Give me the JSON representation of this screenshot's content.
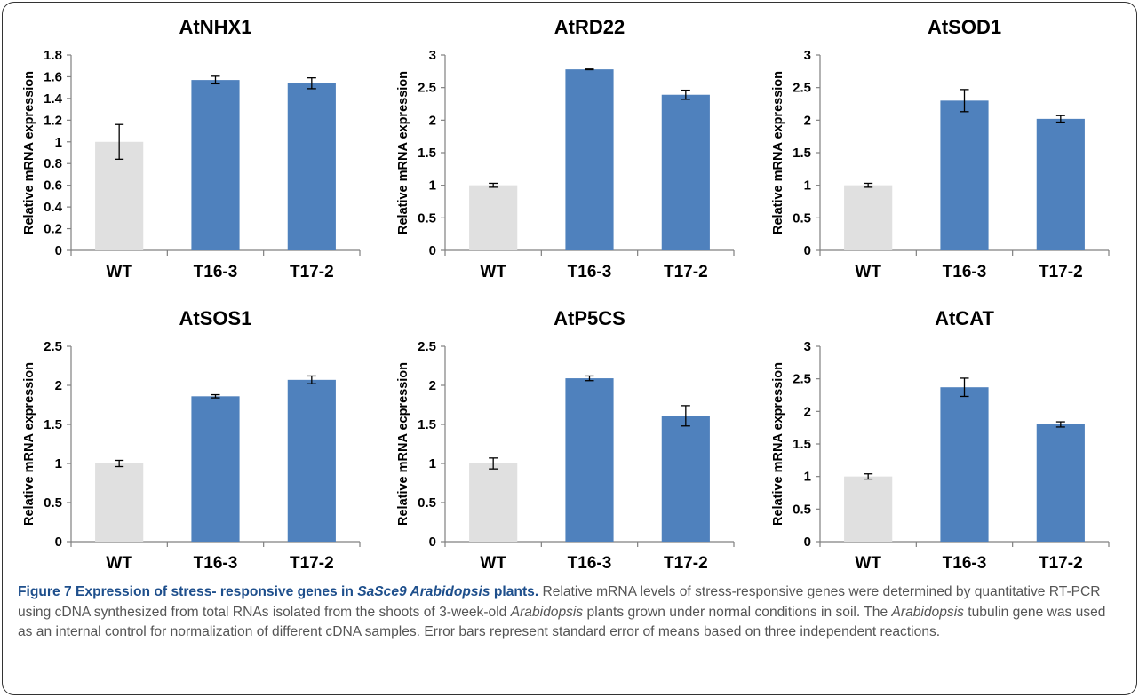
{
  "figure": {
    "caption_label": "Figure 7",
    "caption_title_1": "Expression of stress- responsive genes in ",
    "caption_title_2": "SaSce9 Arabidopsis",
    "caption_title_3": " plants.",
    "caption_text_1": " Relative mRNA levels of stress-responsive genes were determined by quantitative RT-PCR using cDNA synthesized from total RNAs isolated from the shoots of 3-week-old ",
    "caption_text_2": "Arabidopsis",
    "caption_text_3": " plants grown under normal conditions in soil. The ",
    "caption_text_4": "Arabidopsis",
    "caption_text_5": " tubulin gene was used as an internal control for normalization of different cDNA samples. Error bars represent standard error of means based on three independent reactions."
  },
  "colors": {
    "wt_bar": "#e0e0e0",
    "transgenic_bar": "#4f81bd"
  },
  "chart_data": [
    {
      "type": "bar",
      "title": "AtNHX1",
      "ylabel": "Relative mRNA expression",
      "categories": [
        "WT",
        "T16-3",
        "T17-2"
      ],
      "values": [
        1.0,
        1.57,
        1.54
      ],
      "errors": [
        0.16,
        0.035,
        0.05
      ],
      "ylim": [
        0,
        1.8
      ],
      "yticks": [
        "0",
        "0.2",
        "0.4",
        "0.6",
        "0.8",
        "1",
        "1.2",
        "1.4",
        "1.6",
        "1.8"
      ],
      "grid": false
    },
    {
      "type": "bar",
      "title": "AtRD22",
      "ylabel": "Relative mRNA expression",
      "categories": [
        "WT",
        "T16-3",
        "T17-2"
      ],
      "values": [
        1.0,
        2.78,
        2.39
      ],
      "errors": [
        0.03,
        0.005,
        0.07
      ],
      "ylim": [
        0,
        3
      ],
      "yticks": [
        "0",
        "0.5",
        "1",
        "1.5",
        "2",
        "2.5",
        "3"
      ],
      "grid": false
    },
    {
      "type": "bar",
      "title": "AtSOD1",
      "ylabel": "Relative mRNA expression",
      "categories": [
        "WT",
        "T16-3",
        "T17-2"
      ],
      "values": [
        1.0,
        2.3,
        2.02
      ],
      "errors": [
        0.03,
        0.17,
        0.05
      ],
      "ylim": [
        0,
        3
      ],
      "yticks": [
        "0",
        "0.5",
        "1",
        "1.5",
        "2",
        "2.5",
        "3"
      ],
      "grid": false
    },
    {
      "type": "bar",
      "title": "AtSOS1",
      "ylabel": "Relative mRNA expression",
      "categories": [
        "WT",
        "T16-3",
        "T17-2"
      ],
      "values": [
        1.0,
        1.86,
        2.07
      ],
      "errors": [
        0.04,
        0.02,
        0.05
      ],
      "ylim": [
        0,
        2.5
      ],
      "yticks": [
        "0",
        "0.5",
        "1",
        "1.5",
        "2",
        "2.5"
      ],
      "grid": false
    },
    {
      "type": "bar",
      "title": "AtP5CS",
      "ylabel": "Relative mRNA ecpression",
      "categories": [
        "WT",
        "T16-3",
        "T17-2"
      ],
      "values": [
        1.0,
        2.09,
        1.61
      ],
      "errors": [
        0.07,
        0.03,
        0.13
      ],
      "ylim": [
        0,
        2.5
      ],
      "yticks": [
        "0",
        "0.5",
        "1",
        "1.5",
        "2",
        "2.5"
      ],
      "grid": false
    },
    {
      "type": "bar",
      "title": "AtCAT",
      "ylabel": "Relative mRNA expression",
      "categories": [
        "WT",
        "T16-3",
        "T17-2"
      ],
      "values": [
        1.0,
        2.37,
        1.8
      ],
      "errors": [
        0.04,
        0.14,
        0.04
      ],
      "ylim": [
        0,
        3
      ],
      "yticks": [
        "0",
        "0.5",
        "1",
        "1.5",
        "2",
        "2.5",
        "3"
      ],
      "grid": false
    }
  ]
}
